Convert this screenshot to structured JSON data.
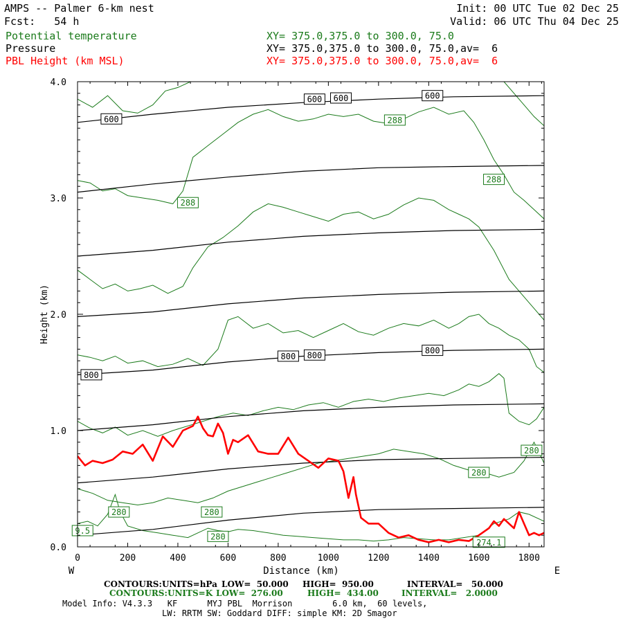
{
  "header": {
    "title": "AMPS -- Palmer 6-km nest",
    "fcst": "Fcst:   54 h",
    "init": "Init: 00 UTC Tue 02 Dec 25",
    "valid": "Valid: 06 UTC Thu 04 Dec 25",
    "fields": [
      {
        "name": "Potential temperature",
        "xy": "XY= 375.0,375.0 to 300.0, 75.0",
        "color": "#1a7a1a"
      },
      {
        "name": "Pressure",
        "xy": "XY= 375.0,375.0 to 300.0, 75.0,av=  6",
        "color": "#000000"
      },
      {
        "name": "PBL Height (km MSL)",
        "xy": "XY= 375.0,375.0 to 300.0, 75.0,av=  6",
        "color": "#ff0000"
      }
    ]
  },
  "colors": {
    "pressure": "#000000",
    "theta": "#1a7a1a",
    "pbl": "#ff0000"
  },
  "chart_data": {
    "type": "line",
    "xlabel": "Distance (km)",
    "ylabel": "Height (km)",
    "xlim": [
      0,
      1860
    ],
    "ylim": [
      0,
      4.0
    ],
    "x_ticks": [
      0,
      200,
      400,
      600,
      800,
      1000,
      1200,
      1400,
      1600,
      1800
    ],
    "x_tick_labels": [
      "0",
      "200",
      "400",
      "600",
      "800",
      "1000",
      "1200",
      "1400",
      "1600",
      "1800"
    ],
    "y_ticks": [
      0,
      1.0,
      2.0,
      3.0,
      4.0
    ],
    "y_tick_labels": [
      "0.0",
      "1.0",
      "2.0",
      "3.0",
      "4.0"
    ],
    "left_end_label": "W",
    "right_end_label": "E",
    "pressure_contours": [
      {
        "x": [
          0,
          300,
          600,
          900,
          1200,
          1500,
          1860
        ],
        "y": [
          3.65,
          3.72,
          3.78,
          3.82,
          3.85,
          3.87,
          3.88
        ]
      },
      {
        "x": [
          0,
          300,
          600,
          900,
          1200,
          1500,
          1860
        ],
        "y": [
          3.05,
          3.12,
          3.18,
          3.23,
          3.26,
          3.27,
          3.28
        ]
      },
      {
        "x": [
          0,
          300,
          600,
          900,
          1200,
          1500,
          1860
        ],
        "y": [
          2.5,
          2.55,
          2.62,
          2.67,
          2.7,
          2.72,
          2.73
        ]
      },
      {
        "x": [
          0,
          300,
          600,
          900,
          1200,
          1500,
          1860
        ],
        "y": [
          1.98,
          2.02,
          2.09,
          2.14,
          2.17,
          2.19,
          2.2
        ]
      },
      {
        "x": [
          0,
          300,
          600,
          900,
          1200,
          1500,
          1860
        ],
        "y": [
          1.48,
          1.52,
          1.59,
          1.64,
          1.67,
          1.69,
          1.7
        ]
      },
      {
        "x": [
          0,
          300,
          600,
          900,
          1200,
          1500,
          1860
        ],
        "y": [
          1.0,
          1.05,
          1.12,
          1.17,
          1.2,
          1.22,
          1.23
        ]
      },
      {
        "x": [
          0,
          300,
          600,
          900,
          1200,
          1500,
          1860
        ],
        "y": [
          0.55,
          0.6,
          0.67,
          0.72,
          0.75,
          0.76,
          0.77
        ]
      },
      {
        "x": [
          0,
          300,
          600,
          900,
          1200,
          1500,
          1860
        ],
        "y": [
          0.1,
          0.15,
          0.23,
          0.29,
          0.32,
          0.33,
          0.34
        ]
      }
    ],
    "pressure_labels": [
      {
        "text": "600",
        "x": 135,
        "y": 3.68
      },
      {
        "text": "600",
        "x": 945,
        "y": 3.85
      },
      {
        "text": "600",
        "x": 1050,
        "y": 3.86
      },
      {
        "text": "600",
        "x": 1415,
        "y": 3.88
      },
      {
        "text": "800",
        "x": 55,
        "y": 1.48
      },
      {
        "text": "800",
        "x": 840,
        "y": 1.64
      },
      {
        "text": "800",
        "x": 945,
        "y": 1.65
      },
      {
        "text": "800",
        "x": 1415,
        "y": 1.69
      }
    ],
    "theta_contours": [
      {
        "x": [
          0,
          60,
          120,
          180,
          240,
          300,
          350,
          400,
          450,
          500,
          560,
          620,
          680,
          740,
          800,
          860,
          920,
          980,
          1040,
          1100,
          1160,
          1220,
          1280,
          1340,
          1400,
          1460,
          1520,
          1560,
          1600,
          1650,
          1700,
          1760,
          1820,
          1860
        ],
        "y": [
          3.85,
          3.78,
          3.88,
          3.75,
          3.73,
          3.8,
          3.92,
          3.95,
          4.0,
          4.0,
          4.0,
          4.0,
          4.0,
          4.0,
          4.0,
          4.0,
          4.0,
          4.0,
          4.0,
          4.0,
          4.0,
          4.0,
          4.0,
          4.0,
          4.0,
          4.0,
          4.0,
          4.0,
          4.0,
          4.0,
          4.0,
          3.85,
          3.7,
          3.62
        ]
      },
      {
        "x": [
          0,
          50,
          100,
          150,
          200,
          260,
          320,
          380,
          420,
          460,
          520,
          580,
          640,
          700,
          760,
          820,
          880,
          940,
          1000,
          1060,
          1120,
          1180,
          1240,
          1300,
          1360,
          1420,
          1480,
          1540,
          1580,
          1620,
          1660,
          1700,
          1740,
          1780,
          1820,
          1860
        ],
        "y": [
          3.15,
          3.13,
          3.06,
          3.08,
          3.02,
          3.0,
          2.98,
          2.95,
          3.06,
          3.35,
          3.45,
          3.55,
          3.65,
          3.72,
          3.76,
          3.7,
          3.66,
          3.68,
          3.72,
          3.7,
          3.72,
          3.66,
          3.64,
          3.68,
          3.74,
          3.78,
          3.72,
          3.75,
          3.65,
          3.5,
          3.33,
          3.2,
          3.05,
          2.98,
          2.9,
          2.82
        ]
      },
      {
        "x": [
          0,
          50,
          100,
          150,
          200,
          250,
          300,
          360,
          420,
          460,
          520,
          580,
          640,
          700,
          760,
          820,
          880,
          940,
          1000,
          1060,
          1120,
          1180,
          1240,
          1300,
          1360,
          1420,
          1480,
          1520,
          1560,
          1600,
          1660,
          1720,
          1780,
          1820,
          1860
        ],
        "y": [
          2.38,
          2.3,
          2.22,
          2.26,
          2.2,
          2.22,
          2.25,
          2.18,
          2.24,
          2.4,
          2.58,
          2.66,
          2.76,
          2.88,
          2.95,
          2.92,
          2.88,
          2.84,
          2.8,
          2.86,
          2.88,
          2.82,
          2.86,
          2.94,
          3.0,
          2.98,
          2.9,
          2.86,
          2.82,
          2.75,
          2.55,
          2.3,
          2.15,
          2.05,
          1.95
        ]
      },
      {
        "x": [
          0,
          50,
          100,
          150,
          200,
          260,
          320,
          380,
          440,
          500,
          560,
          600,
          640,
          700,
          760,
          820,
          880,
          940,
          1000,
          1060,
          1120,
          1180,
          1240,
          1300,
          1360,
          1420,
          1480,
          1520,
          1560,
          1600,
          1640,
          1680,
          1720,
          1760,
          1800,
          1830,
          1860
        ],
        "y": [
          1.65,
          1.63,
          1.6,
          1.64,
          1.58,
          1.6,
          1.55,
          1.57,
          1.62,
          1.56,
          1.7,
          1.95,
          1.98,
          1.88,
          1.92,
          1.84,
          1.86,
          1.8,
          1.86,
          1.92,
          1.85,
          1.82,
          1.88,
          1.92,
          1.9,
          1.95,
          1.88,
          1.92,
          1.98,
          2.0,
          1.92,
          1.88,
          1.82,
          1.78,
          1.7,
          1.55,
          1.5
        ]
      },
      {
        "x": [
          0,
          50,
          100,
          150,
          200,
          260,
          320,
          380,
          440,
          500,
          560,
          620,
          680,
          740,
          800,
          860,
          920,
          980,
          1040,
          1100,
          1160,
          1220,
          1280,
          1340,
          1400,
          1460,
          1520,
          1560,
          1600,
          1640,
          1680,
          1700,
          1720,
          1760,
          1800,
          1830,
          1860
        ],
        "y": [
          1.08,
          1.02,
          0.98,
          1.03,
          0.96,
          1.0,
          0.95,
          1.0,
          1.04,
          1.08,
          1.12,
          1.15,
          1.13,
          1.17,
          1.2,
          1.18,
          1.22,
          1.24,
          1.2,
          1.25,
          1.27,
          1.25,
          1.28,
          1.3,
          1.32,
          1.3,
          1.35,
          1.4,
          1.38,
          1.42,
          1.49,
          1.45,
          1.15,
          1.08,
          1.05,
          1.1,
          1.2
        ]
      },
      {
        "x": [
          0,
          60,
          120,
          180,
          240,
          300,
          360,
          420,
          480,
          540,
          600,
          660,
          720,
          780,
          840,
          900,
          960,
          1020,
          1080,
          1140,
          1200,
          1260,
          1320,
          1380,
          1440,
          1500,
          1560,
          1620,
          1680,
          1740,
          1780,
          1820,
          1860
        ],
        "y": [
          0.5,
          0.46,
          0.4,
          0.38,
          0.36,
          0.38,
          0.42,
          0.4,
          0.38,
          0.42,
          0.48,
          0.52,
          0.56,
          0.6,
          0.64,
          0.68,
          0.72,
          0.74,
          0.76,
          0.78,
          0.8,
          0.84,
          0.82,
          0.8,
          0.76,
          0.7,
          0.66,
          0.64,
          0.6,
          0.64,
          0.74,
          0.9,
          0.72
        ]
      },
      {
        "x": [
          0,
          40,
          80,
          120,
          150,
          170,
          200,
          260,
          320,
          380,
          440,
          480,
          520,
          560,
          600,
          640,
          700,
          760,
          820,
          880,
          940,
          1000,
          1060,
          1120,
          1180,
          1240,
          1300,
          1360,
          1420,
          1480,
          1540,
          1600,
          1660,
          1720,
          1760,
          1800,
          1860
        ],
        "y": [
          0.2,
          0.22,
          0.18,
          0.28,
          0.45,
          0.3,
          0.18,
          0.14,
          0.12,
          0.1,
          0.08,
          0.12,
          0.16,
          0.14,
          0.13,
          0.15,
          0.14,
          0.12,
          0.1,
          0.09,
          0.08,
          0.07,
          0.06,
          0.06,
          0.05,
          0.06,
          0.08,
          0.07,
          0.06,
          0.06,
          0.08,
          0.1,
          0.2,
          0.24,
          0.3,
          0.28,
          0.22
        ]
      }
    ],
    "theta_labels": [
      {
        "text": "288",
        "x": 1265,
        "y": 3.67
      },
      {
        "text": "288",
        "x": 440,
        "y": 2.96
      },
      {
        "text": "288",
        "x": 1660,
        "y": 3.16
      },
      {
        "text": "280",
        "x": 1600,
        "y": 0.64
      },
      {
        "text": "280",
        "x": 1810,
        "y": 0.83
      },
      {
        "text": "280",
        "x": 165,
        "y": 0.3
      },
      {
        "text": "280",
        "x": 535,
        "y": 0.3
      },
      {
        "text": "280",
        "x": 560,
        "y": 0.09
      },
      {
        "text": "274.1",
        "x": 1640,
        "y": 0.04
      },
      {
        "text": "9.5",
        "x": 20,
        "y": 0.14
      }
    ],
    "series": [
      {
        "name": "PBL Height (km MSL)",
        "x": [
          0,
          30,
          60,
          100,
          140,
          180,
          220,
          260,
          300,
          340,
          380,
          420,
          460,
          480,
          500,
          520,
          540,
          560,
          580,
          600,
          620,
          640,
          680,
          720,
          760,
          800,
          840,
          880,
          920,
          960,
          1000,
          1040,
          1060,
          1080,
          1100,
          1110,
          1130,
          1160,
          1200,
          1240,
          1280,
          1320,
          1360,
          1400,
          1440,
          1480,
          1520,
          1560,
          1600,
          1640,
          1660,
          1680,
          1700,
          1720,
          1740,
          1760,
          1780,
          1800,
          1820,
          1840,
          1860
        ],
        "y": [
          0.78,
          0.7,
          0.74,
          0.72,
          0.75,
          0.82,
          0.8,
          0.88,
          0.74,
          0.95,
          0.86,
          1.0,
          1.04,
          1.12,
          1.02,
          0.96,
          0.95,
          1.06,
          0.98,
          0.8,
          0.92,
          0.9,
          0.96,
          0.82,
          0.8,
          0.8,
          0.94,
          0.8,
          0.74,
          0.68,
          0.76,
          0.74,
          0.65,
          0.42,
          0.6,
          0.45,
          0.25,
          0.2,
          0.2,
          0.12,
          0.08,
          0.1,
          0.06,
          0.04,
          0.06,
          0.04,
          0.06,
          0.05,
          0.1,
          0.16,
          0.22,
          0.18,
          0.24,
          0.2,
          0.16,
          0.3,
          0.2,
          0.1,
          0.12,
          0.1,
          0.12
        ]
      }
    ]
  },
  "footer": {
    "pressure_contours": {
      "label": "CONTOURS:",
      "units": "UNITS=hPa",
      "low": "LOW=  50.000",
      "high": "HIGH=  950.00",
      "interval": "INTERVAL=   50.000"
    },
    "theta_contours": {
      "label": "CONTOURS:",
      "units": "UNITS=K",
      "low": "LOW=  276.00",
      "high": "HIGH=  434.00",
      "interval": "INTERVAL=   2.0000"
    },
    "model_info": "Model Info: V4.3.3   KF      MYJ PBL  Morrison        6.0 km,  60 levels,",
    "model_info2": "LW: RRTM SW: Goddard DIFF: simple KM: 2D Smagor"
  }
}
